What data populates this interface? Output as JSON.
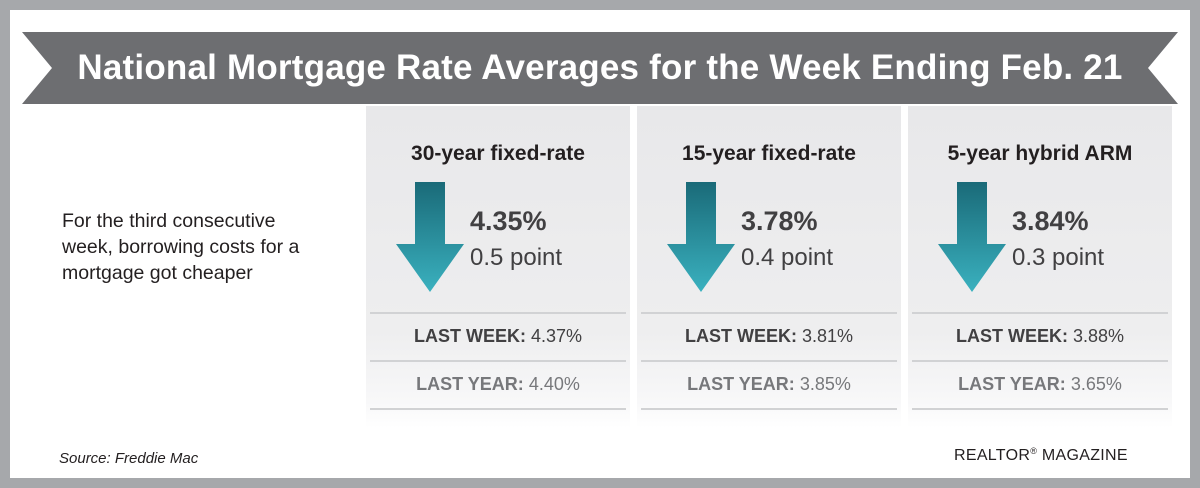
{
  "banner": {
    "title": "National Mortgage Rate Averages for the Week Ending Feb. 21"
  },
  "intro": {
    "text": "For the third consecutive week, borrowing costs for a mortgage got cheaper"
  },
  "panels": [
    {
      "title": "30-year fixed-rate",
      "rate": "4.35%",
      "change": "0.5 point",
      "direction": "down",
      "last_week_label": "LAST WEEK:",
      "last_week_value": "4.37%",
      "last_year_label": "LAST YEAR:",
      "last_year_value": "4.40%"
    },
    {
      "title": "15-year fixed-rate",
      "rate": "3.78%",
      "change": "0.4 point",
      "direction": "down",
      "last_week_label": "LAST WEEK:",
      "last_week_value": "3.81%",
      "last_year_label": "LAST YEAR:",
      "last_year_value": "3.85%"
    },
    {
      "title": "5-year hybrid ARM",
      "rate": "3.84%",
      "change": "0.3 point",
      "direction": "down",
      "last_week_label": "LAST WEEK:",
      "last_week_value": "3.88%",
      "last_year_label": "LAST YEAR:",
      "last_year_value": "3.65%"
    }
  ],
  "footer": {
    "source": "Source: Freddie Mac",
    "magazine_prefix": "REALTOR",
    "magazine_mark": "®",
    "magazine_suffix": " MAGAZINE"
  },
  "colors": {
    "frame": "#a6a8ab",
    "banner": "#6d6e71",
    "arrow_top": "#1a6a78",
    "arrow_bottom": "#3ab1bf"
  },
  "icons": {
    "rate_direction": "down-arrow-icon"
  }
}
